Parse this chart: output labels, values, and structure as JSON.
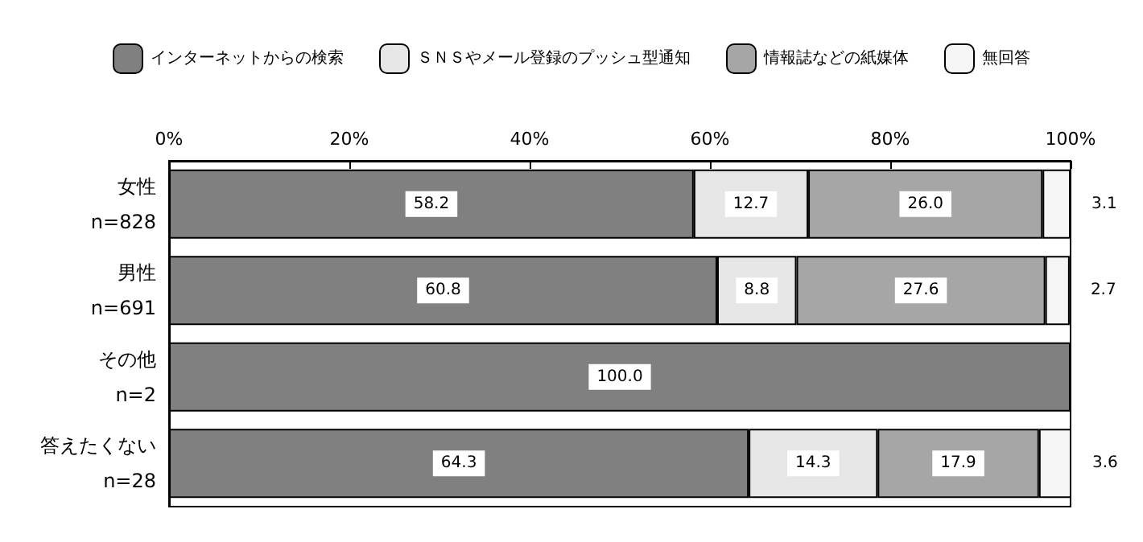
{
  "chart_data": {
    "type": "bar",
    "orientation": "horizontal",
    "stacked": true,
    "legend": "top",
    "grid": false,
    "categories": [
      "女性\nn=828",
      "男性\nn=691",
      "その他\nn=2",
      "答えたくない\nn=28"
    ],
    "xlim": [
      0,
      100
    ],
    "xticks": [
      {
        "value": 0,
        "label": "0%"
      },
      {
        "value": 20,
        "label": "20%"
      },
      {
        "value": 40,
        "label": "40%"
      },
      {
        "value": 60,
        "label": "60%"
      },
      {
        "value": 80,
        "label": "80%"
      },
      {
        "value": 100,
        "label": "100%"
      }
    ],
    "series": [
      {
        "name": "インターネットからの検索",
        "color": "#808080",
        "values": [
          58.2,
          60.8,
          100.0,
          64.3
        ],
        "value_labels": [
          "58.2",
          "60.8",
          "100.0",
          "64.3"
        ]
      },
      {
        "name": "ＳＮＳやメール登録のプッシュ型通知",
        "color": "#e6e6e6",
        "values": [
          12.7,
          8.8,
          null,
          14.3
        ],
        "value_labels": [
          "12.7",
          "8.8",
          null,
          "14.3"
        ]
      },
      {
        "name": "情報誌などの紙媒体",
        "color": "#a6a6a6",
        "values": [
          26.0,
          27.6,
          null,
          17.9
        ],
        "value_labels": [
          "26.0",
          "27.6",
          null,
          "17.9"
        ]
      },
      {
        "name": "無回答",
        "color": "#f5f5f5",
        "values": [
          3.1,
          2.7,
          null,
          3.6
        ],
        "value_labels": [
          "3.1",
          "2.7",
          null,
          "3.6"
        ]
      }
    ]
  }
}
